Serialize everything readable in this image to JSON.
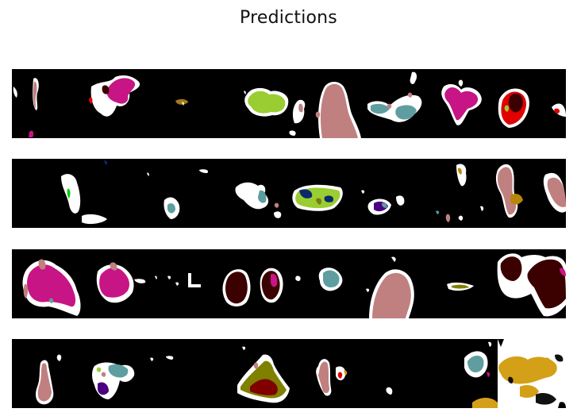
{
  "figure": {
    "title": "Predictions"
  },
  "strips": [
    {
      "index": 0,
      "panels": 8,
      "dominant_colors": [
        "#ffffff",
        "#c71585",
        "#9acd32",
        "#c08080",
        "#5f9ea0",
        "#3b0000",
        "#ff0000"
      ]
    },
    {
      "index": 1,
      "panels": 8,
      "dominant_colors": [
        "#ffffff",
        "#5f9ea0",
        "#9acd32",
        "#000080",
        "#c08080",
        "#b8860b",
        "#00cc00"
      ]
    },
    {
      "index": 2,
      "panels": 8,
      "dominant_colors": [
        "#ffffff",
        "#c71585",
        "#3b0000",
        "#5f9ea0",
        "#c08080",
        "#808000"
      ]
    },
    {
      "index": 3,
      "panels": 8,
      "dominant_colors": [
        "#ffffff",
        "#c08080",
        "#5f9ea0",
        "#4b0082",
        "#800000",
        "#808000",
        "#d4a017"
      ]
    }
  ],
  "palette": {
    "background": "#000000",
    "white": "#ffffff",
    "magenta": "#c71585",
    "yellowgreen": "#9acd32",
    "rosybrown": "#c08080",
    "cadetblue": "#5f9ea0",
    "darkmaroon": "#3b0000",
    "red": "#e00000",
    "navy": "#0a2a6a",
    "indigo": "#4b0082",
    "olive": "#7a7a10",
    "goldenrod": "#d4a017"
  }
}
